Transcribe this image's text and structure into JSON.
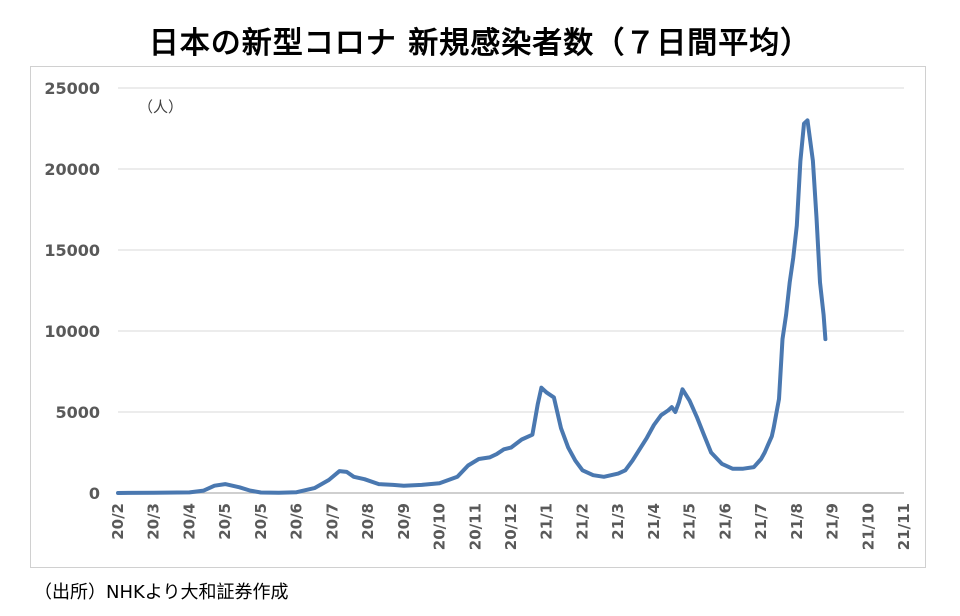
{
  "title": "日本の新型コロナ 新規感染者数（７日間平均）",
  "source": "（出所）NHKより大和証券作成",
  "colors": {
    "line": "#4a78b0",
    "grid": "#d9d9d9",
    "axis": "#bfbfbf",
    "text": "#595959"
  },
  "chart_data": {
    "type": "line",
    "title": "日本の新型コロナ 新規感染者数（７日間平均）",
    "unit_label": "（人）",
    "xlabel": "",
    "ylabel": "",
    "ylim": [
      0,
      25000
    ],
    "yticks": [
      0,
      5000,
      10000,
      15000,
      20000,
      25000
    ],
    "grid": true,
    "legend": "none",
    "xticks": [
      "20/2",
      "20/3",
      "20/4",
      "20/5",
      "20/5",
      "20/6",
      "20/7",
      "20/8",
      "20/9",
      "20/10",
      "20/11",
      "20/12",
      "21/1",
      "21/2",
      "21/3",
      "21/4",
      "21/5",
      "21/6",
      "21/7",
      "21/8",
      "21/9",
      "21/10",
      "21/11"
    ],
    "series": [
      {
        "name": "",
        "x": [
          0.0,
          1.0,
          2.0,
          2.4,
          2.7,
          3.0,
          3.4,
          3.7,
          4.0,
          4.5,
          5.0,
          5.5,
          5.9,
          6.2,
          6.4,
          6.6,
          6.9,
          7.3,
          7.7,
          8.0,
          8.5,
          9.0,
          9.5,
          9.8,
          10.1,
          10.4,
          10.6,
          10.8,
          11.0,
          11.3,
          11.6,
          11.75,
          11.85,
          12.0,
          12.2,
          12.4,
          12.6,
          12.8,
          13.0,
          13.3,
          13.6,
          14.0,
          14.2,
          14.4,
          14.6,
          14.8,
          15.0,
          15.2,
          15.4,
          15.5,
          15.6,
          15.7,
          15.8,
          16.0,
          16.2,
          16.4,
          16.6,
          16.9,
          17.2,
          17.5,
          17.8,
          18.0,
          18.1,
          18.2,
          18.3,
          18.35,
          18.5,
          18.6,
          18.7,
          18.8,
          18.9,
          19.0,
          19.1,
          19.2,
          19.3,
          19.45,
          19.55,
          19.65,
          19.75,
          19.8
        ],
        "values": [
          0,
          20,
          40,
          150,
          450,
          550,
          350,
          150,
          30,
          10,
          50,
          300,
          800,
          1350,
          1300,
          1000,
          850,
          550,
          500,
          450,
          500,
          600,
          1000,
          1700,
          2100,
          2200,
          2400,
          2700,
          2800,
          3300,
          3600,
          5500,
          6500,
          6200,
          5900,
          4000,
          2800,
          2000,
          1400,
          1100,
          1000,
          1200,
          1400,
          2000,
          2700,
          3400,
          4200,
          4800,
          5100,
          5300,
          5000,
          5600,
          6400,
          5700,
          4700,
          3600,
          2500,
          1800,
          1500,
          1500,
          1600,
          2100,
          2500,
          3000,
          3500,
          4000,
          5800,
          9500,
          11000,
          13000,
          14500,
          16500,
          20500,
          22800,
          23000,
          20500,
          17000,
          13000,
          11000,
          9500
        ]
      }
    ]
  }
}
